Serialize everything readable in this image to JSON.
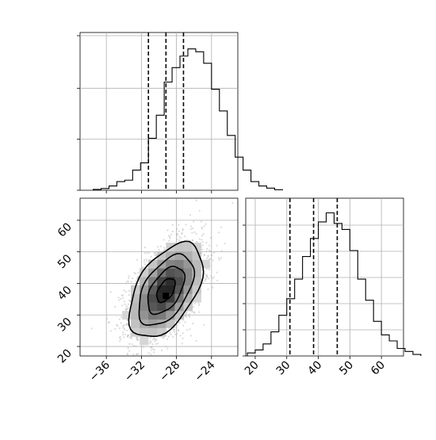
{
  "chart_data": [
    {
      "type": "histogram",
      "panel": "x-marginal",
      "x_range": [
        -39,
        -21
      ],
      "bin_width": 0.9,
      "bins_start": -37.5,
      "counts": [
        0.006,
        0.012,
        0.03,
        0.06,
        0.07,
        0.14,
        0.19,
        0.36,
        0.52,
        0.75,
        0.85,
        0.93,
        0.98,
        0.96,
        0.88,
        0.7,
        0.55,
        0.38,
        0.23,
        0.14,
        0.06,
        0.03,
        0.015,
        0.004
      ],
      "quantile_lines": [
        -31.2,
        -29.2,
        -27.2
      ],
      "grid": true
    },
    {
      "type": "histogram2d",
      "panel": "joint",
      "x_range": [
        -39,
        -21
      ],
      "y_range": [
        17,
        67
      ],
      "center": [
        -29.2,
        37.8
      ],
      "x_ticks": [
        -36,
        -32,
        -28,
        -24
      ],
      "y_ticks": [
        20,
        30,
        40,
        50,
        60
      ],
      "contour_levels": 4,
      "grid": true
    },
    {
      "type": "histogram",
      "panel": "y-marginal",
      "x_range": [
        17,
        67
      ],
      "bin_width": 2.5,
      "bins_start": 17.5,
      "counts": [
        0.02,
        0.04,
        0.08,
        0.16,
        0.27,
        0.38,
        0.51,
        0.66,
        0.78,
        0.89,
        0.95,
        0.88,
        0.84,
        0.7,
        0.51,
        0.37,
        0.23,
        0.14,
        0.1,
        0.05,
        0.03,
        0.01
      ],
      "quantile_lines": [
        31.0,
        38.5,
        46.0
      ],
      "x_ticks": [
        20,
        30,
        40,
        50,
        60
      ],
      "grid": true
    }
  ]
}
